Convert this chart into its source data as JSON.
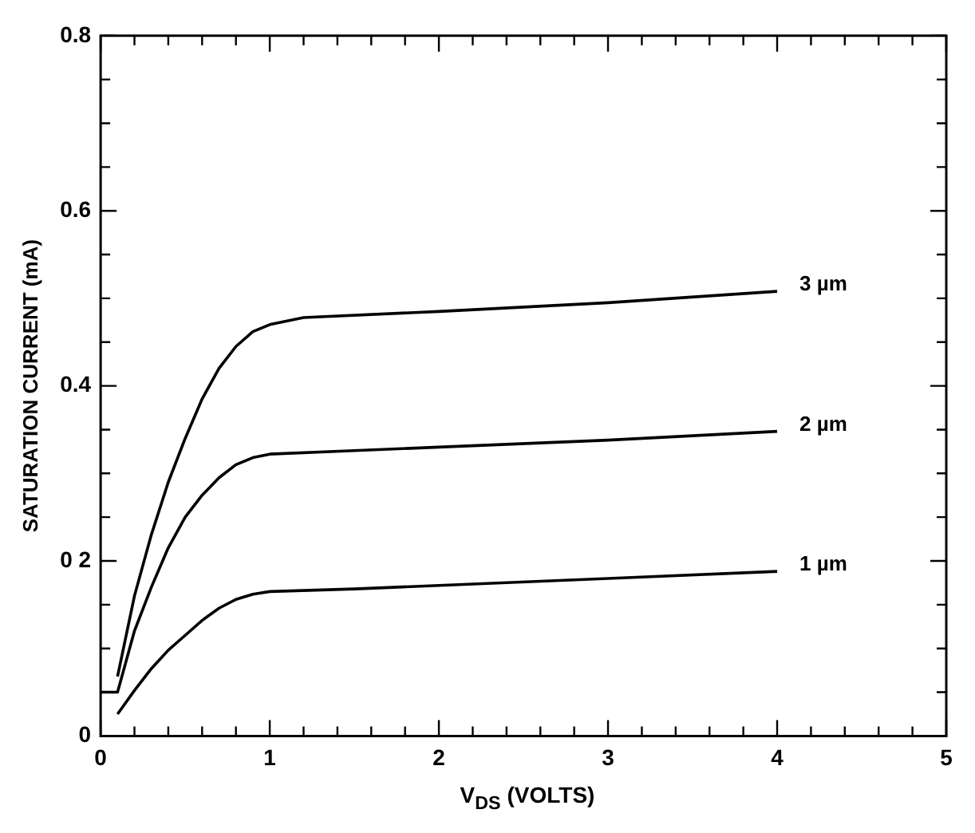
{
  "chart_data": {
    "type": "line",
    "xlabel": "V$_{DS}$ (VOLTS)",
    "ylabel": "SATURATION CURRENT (mA)",
    "xlim": [
      0,
      5
    ],
    "ylim": [
      0,
      0.8
    ],
    "xticks": [
      0,
      {
        "value": 0.2,
        "label": null
      },
      {
        "value": 0.4,
        "label": null
      },
      {
        "value": 0.6,
        "label": null
      },
      {
        "value": 0.8,
        "label": null
      },
      1,
      {
        "value": 1.2,
        "label": null
      },
      {
        "value": 1.4,
        "label": null
      },
      {
        "value": 1.6,
        "label": null
      },
      {
        "value": 1.8,
        "label": null
      },
      2,
      {
        "value": 2.2,
        "label": null
      },
      {
        "value": 2.4,
        "label": null
      },
      {
        "value": 2.6,
        "label": null
      },
      {
        "value": 2.8,
        "label": null
      },
      3,
      {
        "value": 3.2,
        "label": null
      },
      {
        "value": 3.4,
        "label": null
      },
      {
        "value": 3.6,
        "label": null
      },
      {
        "value": 3.8,
        "label": null
      },
      4,
      {
        "value": 4.2,
        "label": null
      },
      {
        "value": 4.4,
        "label": null
      },
      {
        "value": 4.6,
        "label": null
      },
      {
        "value": 4.8,
        "label": null
      },
      5
    ],
    "yticks": [
      0,
      {
        "value": 0.05,
        "label": null
      },
      {
        "value": 0.1,
        "label": null
      },
      {
        "value": 0.15,
        "label": null
      },
      {
        "value": 0.2,
        "label": "0 2"
      },
      {
        "value": 0.25,
        "label": null
      },
      {
        "value": 0.3,
        "label": null
      },
      {
        "value": 0.35,
        "label": null
      },
      {
        "value": 0.4,
        "label": "0.4"
      },
      {
        "value": 0.45,
        "label": null
      },
      {
        "value": 0.5,
        "label": null
      },
      {
        "value": 0.55,
        "label": null
      },
      {
        "value": 0.6,
        "label": "0.6"
      },
      {
        "value": 0.65,
        "label": null
      },
      {
        "value": 0.7,
        "label": null
      },
      {
        "value": 0.75,
        "label": null
      },
      {
        "value": 0.8,
        "label": "0.8"
      }
    ],
    "grid": false,
    "legend": false,
    "marker": "none",
    "line_style": "solid",
    "series": [
      {
        "name": "3 µm",
        "color": "#000000",
        "x": [
          0.1,
          0.2,
          0.3,
          0.4,
          0.5,
          0.6,
          0.7,
          0.8,
          0.9,
          1.0,
          1.2,
          2.0,
          3.0,
          4.0
        ],
        "values": [
          0.068,
          0.16,
          0.23,
          0.29,
          0.34,
          0.385,
          0.42,
          0.445,
          0.462,
          0.47,
          0.478,
          0.485,
          0.495,
          0.508
        ]
      },
      {
        "name": "2 µm",
        "color": "#000000",
        "x": [
          0,
          0.1,
          0.2,
          0.3,
          0.4,
          0.5,
          0.6,
          0.7,
          0.8,
          0.9,
          1.0,
          1.5,
          2.0,
          3.0,
          4.0
        ],
        "values": [
          0.05,
          0.05,
          0.12,
          0.17,
          0.215,
          0.25,
          0.275,
          0.295,
          0.31,
          0.318,
          0.322,
          0.326,
          0.33,
          0.338,
          0.348
        ]
      },
      {
        "name": "1 µm",
        "color": "#000000",
        "x": [
          0.1,
          0.2,
          0.3,
          0.4,
          0.5,
          0.6,
          0.7,
          0.8,
          0.9,
          1.0,
          1.5,
          2.0,
          3.0,
          4.0
        ],
        "values": [
          0.025,
          0.052,
          0.077,
          0.098,
          0.115,
          0.132,
          0.146,
          0.156,
          0.162,
          0.165,
          0.168,
          0.172,
          0.18,
          0.188
        ]
      }
    ]
  }
}
